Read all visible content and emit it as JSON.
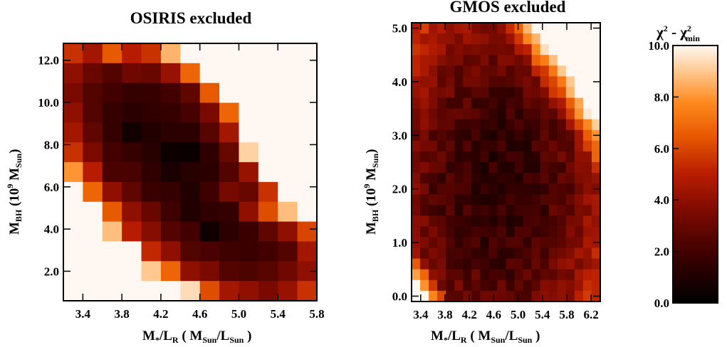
{
  "chart_data": [
    {
      "type": "heatmap",
      "title": "OSIRIS excluded",
      "xlabel": {
        "main": "M",
        "sub1": "*",
        "mid": "/L",
        "sub2": "R",
        "units_open": " ( M",
        "units_sub1": "Sun",
        "units_mid": "/L",
        "units_sub2": "Sun",
        "units_close": " )"
      },
      "ylabel": {
        "main": "M",
        "sub1": "BH",
        "units_open": " (10",
        "units_sup": "9",
        "units_mid": " M",
        "units_sub2": "Sun",
        "units_close": ")"
      },
      "xlim": [
        3.2,
        5.8
      ],
      "ylim": [
        0.6,
        12.8
      ],
      "x_ticks": [
        "3.4",
        "3.8",
        "4.2",
        "4.6",
        "5.0",
        "5.4",
        "5.8"
      ],
      "x_tick_values": [
        3.4,
        3.8,
        4.2,
        4.6,
        5.0,
        5.4,
        5.8
      ],
      "y_ticks": [
        "2.0",
        "4.0",
        "6.0",
        "8.0",
        "10.0",
        "12.0"
      ],
      "y_tick_values": [
        2.0,
        4.0,
        6.0,
        8.0,
        10.0,
        12.0
      ],
      "grid": false,
      "rows_top_to_bottom": [
        [
          5.5,
          4.5,
          6.5,
          5.0,
          5.5,
          8.6,
          10,
          10,
          10,
          10,
          10,
          10,
          10
        ],
        [
          4.0,
          3.0,
          2.5,
          3.2,
          3.0,
          4.2,
          6.8,
          10,
          10,
          10,
          10,
          10,
          10
        ],
        [
          3.5,
          2.4,
          2.0,
          1.6,
          1.7,
          2.0,
          2.8,
          6.5,
          10,
          10,
          10,
          10,
          10
        ],
        [
          4.0,
          2.5,
          1.7,
          1.3,
          1.5,
          1.6,
          2.1,
          3.5,
          6.8,
          10,
          10,
          10,
          10
        ],
        [
          4.5,
          2.8,
          1.6,
          0.6,
          1.1,
          1.3,
          1.4,
          2.6,
          4.5,
          10,
          10,
          10,
          10
        ],
        [
          5.5,
          3.5,
          2.0,
          1.6,
          1.2,
          0.4,
          0.3,
          1.5,
          3.0,
          9.2,
          10,
          10,
          10
        ],
        [
          8.0,
          5.0,
          2.2,
          2.2,
          1.5,
          0.8,
          1.2,
          1.4,
          2.5,
          4.2,
          10,
          10,
          10
        ],
        [
          10,
          6.8,
          4.0,
          2.8,
          1.8,
          1.6,
          1.0,
          1.9,
          3.4,
          3.0,
          5.5,
          10,
          10
        ],
        [
          10,
          10,
          6.5,
          4.0,
          3.0,
          1.9,
          1.0,
          1.5,
          1.6,
          4.0,
          6.2,
          8.8,
          10
        ],
        [
          10,
          10,
          8.8,
          5.0,
          3.8,
          2.5,
          2.0,
          0.5,
          1.4,
          1.8,
          2.8,
          4.0,
          6.0
        ],
        [
          10,
          10,
          10,
          10,
          5.3,
          4.0,
          2.4,
          2.2,
          1.9,
          1.8,
          2.0,
          2.5,
          4.5
        ],
        [
          10,
          10,
          10,
          10,
          9.0,
          6.8,
          4.0,
          3.5,
          2.5,
          2.3,
          2.6,
          3.2,
          4.0
        ],
        [
          10,
          10,
          10,
          10,
          10,
          10,
          9.4,
          6.2,
          4.5,
          4.0,
          3.5,
          4.2,
          5.5
        ]
      ]
    },
    {
      "type": "heatmap",
      "title": "GMOS excluded",
      "xlabel": {
        "main": "M",
        "sub1": "*",
        "mid": "/L",
        "sub2": "R",
        "units_open": " ( M",
        "units_sub1": "Sun",
        "units_mid": "/L",
        "units_sub2": "Sun",
        "units_close": " )"
      },
      "ylabel": {
        "main": "M",
        "sub1": "BH",
        "units_open": " (10",
        "units_sup": "9",
        "units_mid": " M",
        "units_sub2": "Sun",
        "units_close": ")"
      },
      "xlim": [
        3.25,
        6.35
      ],
      "ylim": [
        -0.1,
        5.1
      ],
      "x_ticks": [
        "3.4",
        "3.8",
        "4.2",
        "4.6",
        "5.0",
        "5.4",
        "5.8",
        "6.2"
      ],
      "x_tick_values": [
        3.4,
        3.8,
        4.2,
        4.6,
        5.0,
        5.4,
        5.8,
        6.2
      ],
      "y_ticks": [
        "0.0",
        "1.0",
        "2.0",
        "3.0",
        "4.0",
        "5.0"
      ],
      "y_tick_values": [
        0.0,
        1.0,
        2.0,
        3.0,
        4.0,
        5.0
      ],
      "grid": false,
      "ncols": 22,
      "nrows": 26
    }
  ],
  "colorbar": {
    "label_main": "χ",
    "label_sup1": "2",
    "label_minus": " - χ",
    "label_sup2": "2",
    "label_sub": "min",
    "range": [
      0.0,
      10.0
    ],
    "ticks": [
      "0.0",
      "2.0",
      "4.0",
      "6.0",
      "8.0",
      "10.0"
    ],
    "tick_values": [
      0.0,
      2.0,
      4.0,
      6.0,
      8.0,
      10.0
    ]
  }
}
